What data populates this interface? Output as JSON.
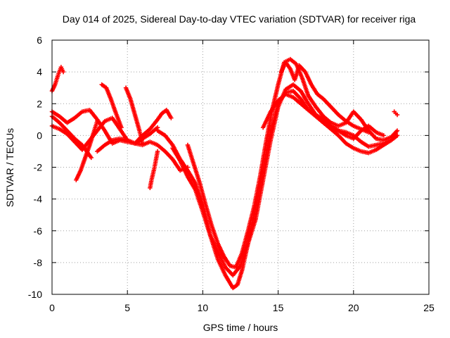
{
  "chart_data": {
    "type": "scatter",
    "title": "Day 014 of 2025, Sidereal Day-to-day VTEC variation (SDTVAR) for receiver riga",
    "xlabel": "GPS time / hours",
    "ylabel": "SDTVAR / TECUs",
    "xlim": [
      0,
      25
    ],
    "ylim": [
      -10,
      6
    ],
    "xticks": [
      0,
      5,
      10,
      15,
      20,
      25
    ],
    "yticks": [
      -10,
      -8,
      -6,
      -4,
      -2,
      0,
      2,
      4,
      6
    ],
    "xtick_labels": [
      "0",
      "5",
      "10",
      "15",
      "20",
      "25"
    ],
    "ytick_labels": [
      "-10",
      "-8",
      "-6",
      "-4",
      "-2",
      "0",
      "2",
      "4",
      "6"
    ],
    "grid": true,
    "marker": "plus",
    "color": "#ff0000",
    "series": [
      {
        "name": "track-1",
        "x": [
          0.0,
          0.2,
          0.4,
          0.6,
          0.75
        ],
        "y": [
          2.8,
          3.2,
          3.8,
          4.3,
          4.0
        ]
      },
      {
        "name": "track-2",
        "x": [
          0.0,
          0.5,
          1.0,
          1.5,
          2.0,
          2.5,
          3.0,
          3.5,
          4.0,
          4.5,
          5.0,
          5.5,
          6.0,
          6.5,
          7.0,
          7.3,
          7.6,
          7.9
        ],
        "y": [
          1.5,
          1.2,
          0.8,
          1.1,
          1.5,
          1.6,
          1.0,
          0.3,
          -0.5,
          -0.3,
          -0.4,
          -0.5,
          0.0,
          0.4,
          1.0,
          1.4,
          1.6,
          1.1
        ]
      },
      {
        "name": "track-3",
        "x": [
          0.0,
          0.5,
          1.0,
          1.5,
          2.0,
          2.5,
          3.0,
          3.5,
          4.0,
          4.5,
          5.0,
          5.5,
          6.0,
          6.5,
          7.0
        ],
        "y": [
          0.6,
          0.4,
          0.1,
          -0.4,
          -0.9,
          -0.3,
          0.3,
          0.9,
          1.1,
          0.4,
          -0.3,
          -0.5,
          -0.2,
          0.1,
          0.5
        ]
      },
      {
        "name": "track-4",
        "x": [
          0.0,
          0.5,
          1.0,
          1.5,
          2.0,
          2.3,
          2.6
        ],
        "y": [
          1.2,
          0.8,
          0.3,
          -0.2,
          -0.6,
          -1.0,
          -1.4
        ]
      },
      {
        "name": "track-5",
        "x": [
          1.6,
          1.9,
          2.2,
          2.5,
          2.8,
          3.0
        ],
        "y": [
          -2.8,
          -2.2,
          -1.4,
          -0.6,
          0.3,
          0.9
        ]
      },
      {
        "name": "track-6",
        "x": [
          3.3,
          3.6,
          3.9,
          4.2,
          4.6
        ],
        "y": [
          3.2,
          3.0,
          2.3,
          1.5,
          0.5
        ]
      },
      {
        "name": "track-7",
        "x": [
          4.9,
          5.2,
          5.5,
          5.8,
          6.0
        ],
        "y": [
          3.0,
          2.3,
          1.3,
          0.3,
          -0.5
        ]
      },
      {
        "name": "track-8",
        "x": [
          3.0,
          3.5,
          4.0,
          4.5,
          5.0,
          5.5,
          6.0,
          6.5,
          7.0,
          7.5,
          8.0,
          8.5,
          9.0
        ],
        "y": [
          -1.0,
          -0.6,
          -0.3,
          -0.2,
          -0.3,
          -0.5,
          -0.6,
          -0.4,
          -0.6,
          -1.0,
          -1.5,
          -2.2,
          -2.0
        ]
      },
      {
        "name": "track-9",
        "x": [
          6.5,
          6.6,
          6.7,
          6.8,
          6.9,
          7.0
        ],
        "y": [
          -3.3,
          -2.8,
          -2.4,
          -2.0,
          -1.5,
          -1.0
        ]
      },
      {
        "name": "track-10",
        "x": [
          7.0,
          7.5,
          8.0,
          8.5,
          9.0,
          9.5,
          10.0,
          10.5,
          11.0,
          11.5,
          12.0,
          12.3,
          12.6,
          13.0,
          13.5,
          14.0,
          14.5,
          15.0,
          15.5,
          16.0,
          16.5,
          17.0,
          17.5,
          18.0,
          18.5,
          19.0,
          19.5,
          20.0,
          20.5,
          21.0,
          21.5,
          22.0,
          22.5,
          22.9
        ],
        "y": [
          0.3,
          0.0,
          -0.6,
          -1.5,
          -2.2,
          -3.0,
          -4.3,
          -6.3,
          -7.8,
          -8.8,
          -9.6,
          -9.4,
          -8.5,
          -6.8,
          -4.5,
          -2.2,
          0.2,
          2.0,
          2.7,
          2.8,
          2.3,
          1.6,
          1.2,
          0.8,
          0.5,
          0.3,
          0.2,
          0.0,
          -0.4,
          -0.7,
          -0.6,
          -0.5,
          -0.3,
          0.0
        ]
      },
      {
        "name": "track-11",
        "x": [
          8.0,
          8.5,
          9.0,
          9.5,
          10.0,
          10.5,
          11.0,
          11.5,
          12.0,
          12.5,
          13.0,
          13.5,
          14.0,
          14.5,
          15.0,
          15.5,
          16.0,
          16.5,
          17.0,
          17.5,
          18.0,
          18.5,
          19.0,
          19.5,
          20.0,
          20.5,
          21.0,
          21.5,
          22.0,
          22.5,
          22.9
        ],
        "y": [
          -0.8,
          -1.6,
          -2.6,
          -3.4,
          -4.8,
          -6.3,
          -7.3,
          -8.3,
          -8.8,
          -8.2,
          -6.8,
          -5.3,
          -2.8,
          -0.3,
          1.8,
          2.9,
          3.2,
          2.8,
          2.0,
          1.3,
          0.8,
          0.4,
          0.0,
          -0.5,
          -0.8,
          -1.0,
          -1.1,
          -0.9,
          -0.6,
          -0.3,
          0.0
        ]
      },
      {
        "name": "track-12",
        "x": [
          9.0,
          9.4,
          9.8,
          10.2,
          10.6,
          11.0,
          11.4,
          11.8,
          12.2,
          12.6,
          13.0,
          13.4,
          13.8,
          14.2,
          14.6,
          15.0,
          15.4,
          15.8,
          16.2,
          16.6,
          17.0,
          17.5,
          18.0,
          18.5,
          19.0,
          19.5,
          20.0,
          20.5,
          21.0,
          21.5,
          22.0,
          22.5,
          22.9
        ],
        "y": [
          -0.6,
          -1.8,
          -3.0,
          -4.4,
          -5.7,
          -6.8,
          -7.6,
          -8.2,
          -8.3,
          -7.4,
          -6.0,
          -4.5,
          -2.6,
          -0.4,
          1.6,
          3.2,
          4.6,
          4.8,
          4.5,
          3.6,
          2.5,
          1.8,
          1.2,
          0.8,
          0.6,
          0.8,
          1.5,
          1.0,
          0.3,
          -0.2,
          -0.3,
          -0.1,
          0.3
        ]
      },
      {
        "name": "track-13",
        "x": [
          15.2,
          15.5,
          15.8,
          16.1,
          16.4,
          16.8,
          17.2,
          17.6,
          18.0,
          18.5,
          19.0,
          19.5,
          20.0,
          20.5,
          21.0
        ],
        "y": [
          4.0,
          4.6,
          4.2,
          3.5,
          4.4,
          4.0,
          3.2,
          2.6,
          2.3,
          1.8,
          1.3,
          0.9,
          0.6,
          0.4,
          0.2
        ]
      },
      {
        "name": "track-14",
        "x": [
          14.0,
          14.5,
          15.0,
          15.5,
          16.0,
          16.5,
          17.0,
          17.5,
          18.0,
          18.5,
          19.0,
          19.5,
          20.0,
          20.5,
          21.0,
          21.5,
          22.0
        ],
        "y": [
          0.5,
          1.5,
          2.2,
          2.6,
          2.4,
          2.0,
          1.6,
          1.3,
          1.0,
          0.6,
          0.3,
          0.0,
          -0.2,
          0.3,
          0.6,
          0.2,
          0.0
        ]
      },
      {
        "name": "track-15",
        "x": [
          22.7,
          22.8,
          22.9
        ],
        "y": [
          1.5,
          1.4,
          1.3
        ]
      }
    ]
  }
}
